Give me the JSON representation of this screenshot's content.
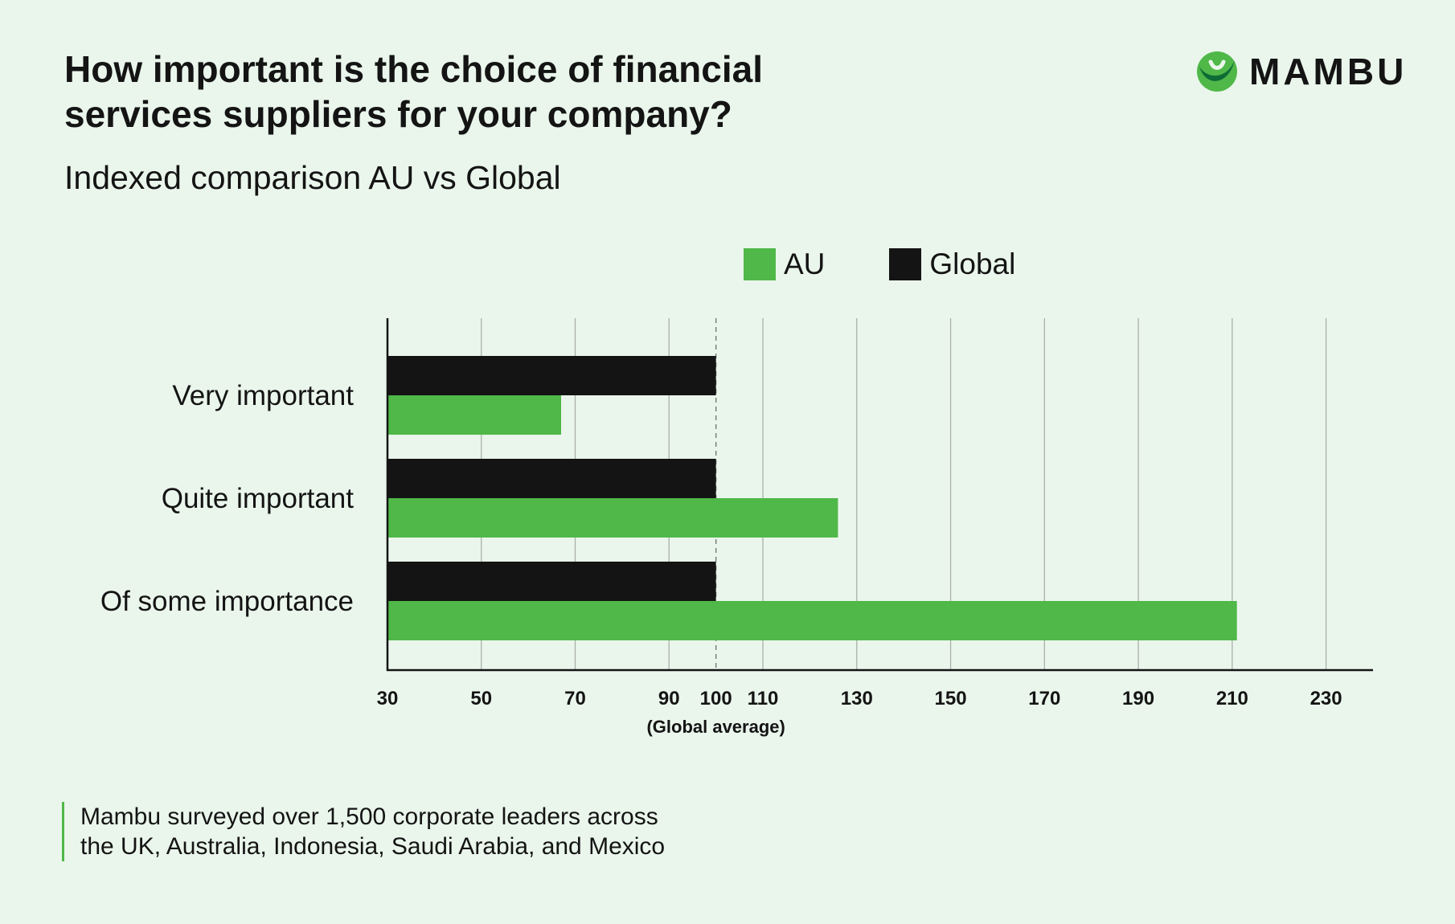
{
  "header": {
    "title_line1": "How important is the choice of financial",
    "title_line2": "services suppliers for your company?",
    "subtitle": "Indexed comparison AU vs Global",
    "logo_text": "MAMBU"
  },
  "note": {
    "line1": "Mambu surveyed over 1,500 corporate leaders across",
    "line2": "the UK, Australia, Indonesia, Saudi Arabia, and Mexico"
  },
  "colors": {
    "au": "#4fb848",
    "global": "#141414",
    "background": "#eaf6ec",
    "grid": "#a9b0aa"
  },
  "chart_data": {
    "type": "bar",
    "orientation": "horizontal",
    "categories": [
      "Very important",
      "Quite important",
      "Of some importance"
    ],
    "series": [
      {
        "name": "Global",
        "values": [
          100,
          100,
          100
        ]
      },
      {
        "name": "AU",
        "values": [
          67,
          126,
          211
        ]
      }
    ],
    "xlim": [
      30,
      240
    ],
    "xticks": [
      30,
      50,
      70,
      90,
      100,
      110,
      130,
      150,
      170,
      190,
      210,
      230
    ],
    "reference_line": {
      "value": 100,
      "label": "(Global average)"
    },
    "legend": [
      "AU",
      "Global"
    ],
    "legend_position": "top",
    "grid": true
  }
}
